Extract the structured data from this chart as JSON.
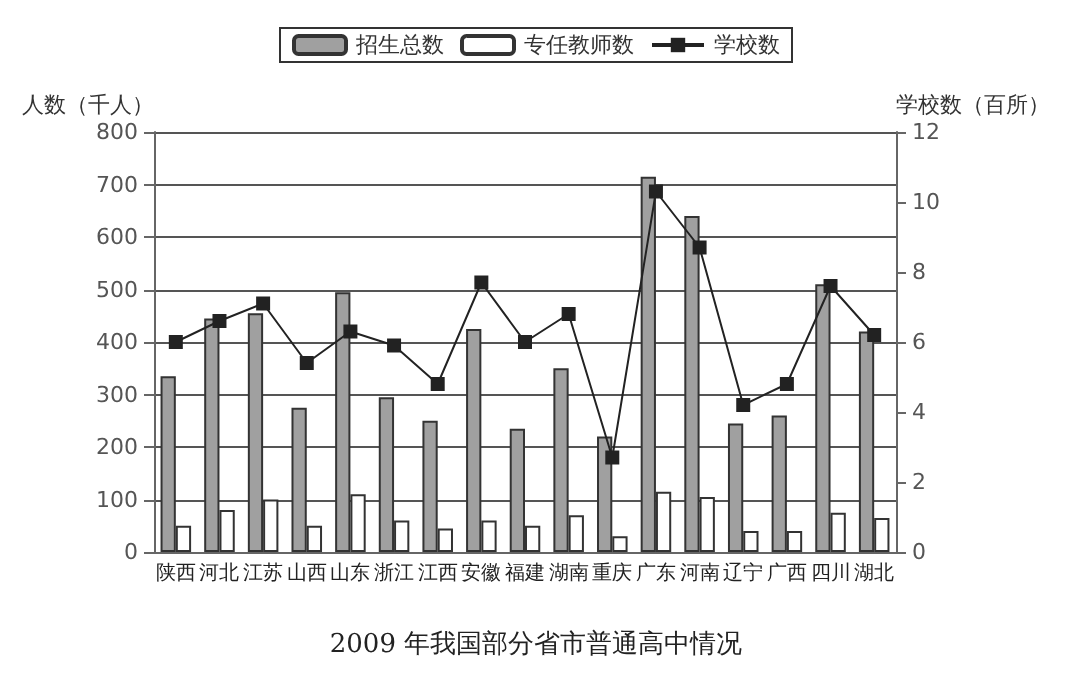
{
  "chart_data": {
    "type": "bar",
    "title": "2009 年我国部分省市普通高中情况",
    "ylabel": "人数（千人）",
    "y2label": "学校数（百所）",
    "categories": [
      "陕西",
      "河北",
      "江苏",
      "山西",
      "山东",
      "浙江",
      "江西",
      "安徽",
      "福建",
      "湖南",
      "重庆",
      "广东",
      "河南",
      "辽宁",
      "广西",
      "四川",
      "湖北"
    ],
    "series": [
      {
        "name": "招生总数",
        "color": "#a0a0a0",
        "values": [
          335,
          445,
          455,
          275,
          495,
          295,
          250,
          425,
          235,
          350,
          220,
          715,
          640,
          245,
          260,
          510,
          420
        ]
      },
      {
        "name": "专任教师数",
        "color": "#ffffff",
        "values": [
          50,
          80,
          100,
          50,
          110,
          60,
          45,
          60,
          50,
          70,
          30,
          115,
          105,
          40,
          40,
          75,
          65
        ]
      },
      {
        "name": "学校数",
        "type": "line",
        "axis": "y2",
        "color": "#222222",
        "marker": "square",
        "values": [
          6.0,
          6.6,
          7.1,
          5.4,
          6.3,
          5.9,
          4.8,
          7.7,
          6.0,
          6.8,
          2.7,
          10.3,
          8.7,
          4.2,
          4.8,
          7.6,
          6.2
        ]
      }
    ],
    "ylim": [
      0,
      800
    ],
    "yticks": [
      0,
      100,
      200,
      300,
      400,
      500,
      600,
      700,
      800
    ],
    "y2lim": [
      0,
      12
    ],
    "y2ticks": [
      0,
      2,
      4,
      6,
      8,
      10,
      12
    ],
    "grid": "y",
    "legend": "top",
    "line_style": "solid"
  }
}
